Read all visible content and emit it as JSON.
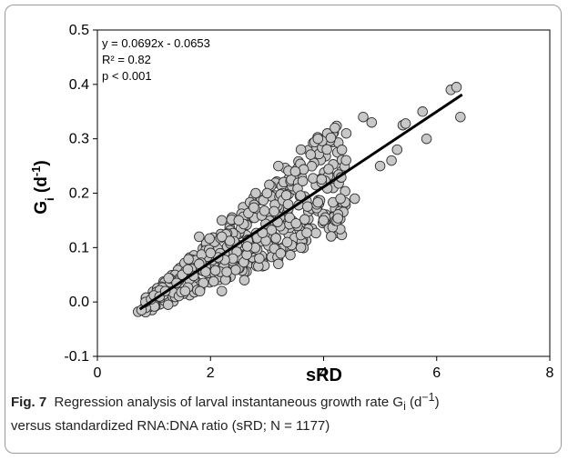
{
  "chart_data": {
    "type": "scatter",
    "xlabel": "sRD",
    "ylabel_main": "G",
    "ylabel_sub": "i",
    "ylabel_unit_open": " (d",
    "ylabel_unit_exp": "-1",
    "ylabel_unit_close": ")",
    "xlim": [
      0,
      8
    ],
    "ylim": [
      -0.1,
      0.5
    ],
    "x_ticks": [
      0,
      2,
      4,
      6,
      8
    ],
    "y_ticks": [
      -0.1,
      0.0,
      0.1,
      0.2,
      0.3,
      0.4,
      0.5
    ],
    "x_tick_labels": [
      "0",
      "2",
      "4",
      "6",
      "8"
    ],
    "y_tick_labels": [
      "-0.1",
      "0.0",
      "0.1",
      "0.2",
      "0.3",
      "0.4",
      "0.5"
    ],
    "annotations": [
      "y = 0.0692x - 0.0653",
      "R² = 0.82",
      "p < 0.001"
    ],
    "regression": {
      "slope": 0.0692,
      "intercept": -0.0653,
      "x_range": [
        0.75,
        6.45
      ]
    },
    "grid": false,
    "colors": {
      "marker_fill": "#c8c8c8",
      "marker_stroke": "#333333",
      "line": "#000000"
    },
    "n_points_shown": 1177,
    "points_sample": [
      [
        0.72,
        -0.018
      ],
      [
        0.78,
        -0.015
      ],
      [
        0.85,
        0.0
      ],
      [
        0.95,
        0.005
      ],
      [
        1.0,
        0.012
      ],
      [
        1.1,
        0.01
      ],
      [
        1.2,
        0.02
      ],
      [
        1.25,
        -0.005
      ],
      [
        1.4,
        0.035
      ],
      [
        1.5,
        0.05
      ],
      [
        1.6,
        0.06
      ],
      [
        1.55,
        0.02
      ],
      [
        1.8,
        0.07
      ],
      [
        2.0,
        0.09
      ],
      [
        2.2,
        0.12
      ],
      [
        2.5,
        0.15
      ],
      [
        3.0,
        0.2
      ],
      [
        3.5,
        0.24
      ],
      [
        3.9,
        0.3
      ],
      [
        4.2,
        0.32
      ],
      [
        4.4,
        0.31
      ],
      [
        4.7,
        0.34
      ],
      [
        4.85,
        0.33
      ],
      [
        5.0,
        0.25
      ],
      [
        5.2,
        0.26
      ],
      [
        5.3,
        0.28
      ],
      [
        5.4,
        0.325
      ],
      [
        5.45,
        0.328
      ],
      [
        5.75,
        0.35
      ],
      [
        5.82,
        0.3
      ],
      [
        6.25,
        0.39
      ],
      [
        6.35,
        0.395
      ],
      [
        6.42,
        0.34
      ],
      [
        2.2,
        0.02
      ],
      [
        2.6,
        0.04
      ],
      [
        3.2,
        0.07
      ],
      [
        3.6,
        0.1
      ],
      [
        4.0,
        0.15
      ],
      [
        4.3,
        0.19
      ],
      [
        4.55,
        0.19
      ],
      [
        1.8,
        0.12
      ],
      [
        2.2,
        0.15
      ],
      [
        2.8,
        0.2
      ],
      [
        3.2,
        0.25
      ],
      [
        3.6,
        0.28
      ]
    ]
  },
  "caption": {
    "label": "Fig. 7",
    "text_1": "Regression analysis of larval instantaneous growth rate G",
    "text_sub": "i",
    "text_2": " (d",
    "text_sup": "−1",
    "text_3": ")",
    "text_4": "versus standardized RNA:DNA ratio (sRD; N = 1177)"
  }
}
